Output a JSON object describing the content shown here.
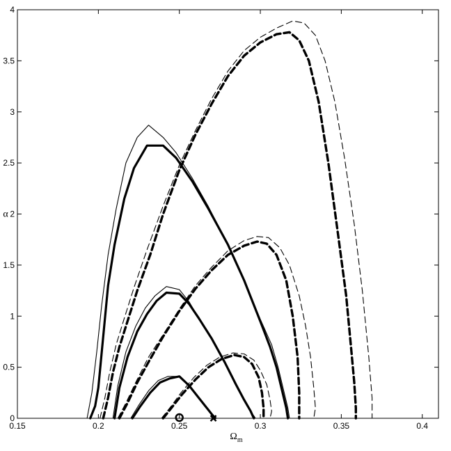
{
  "chart_data": {
    "type": "line",
    "title": "",
    "xlabel": "Ω",
    "xlabel_subscript": "m",
    "ylabel": "α",
    "xlim": [
      0.15,
      0.41
    ],
    "ylim": [
      0,
      4
    ],
    "xticks": [
      0.15,
      0.2,
      0.25,
      0.3,
      0.35,
      0.4
    ],
    "yticks": [
      0,
      0.5,
      1,
      1.5,
      2,
      2.5,
      3,
      3.5,
      4
    ],
    "xtick_labels": [
      "0.15",
      "0.2",
      "0.25",
      "0.3",
      "0.35",
      "0.4"
    ],
    "ytick_labels": [
      "0",
      "0.5",
      "1",
      "1.5",
      "2",
      "2.5",
      "3",
      "3.5",
      "4"
    ],
    "grid": false,
    "series": [
      {
        "style": "solid-thick",
        "x": [
          0.195,
          0.198,
          0.2,
          0.203,
          0.206,
          0.21,
          0.216,
          0.222,
          0.23,
          0.24,
          0.248,
          0.258,
          0.268,
          0.28,
          0.29,
          0.3,
          0.306,
          0.31,
          0.313,
          0.316,
          0.317
        ],
        "y": [
          0,
          0.12,
          0.3,
          0.8,
          1.3,
          1.7,
          2.15,
          2.45,
          2.67,
          2.67,
          2.55,
          2.32,
          2.05,
          1.7,
          1.35,
          0.95,
          0.7,
          0.5,
          0.3,
          0.1,
          0
        ]
      },
      {
        "style": "solid-thin",
        "x": [
          0.193,
          0.196,
          0.199,
          0.202,
          0.206,
          0.211,
          0.217,
          0.224,
          0.231,
          0.24,
          0.248,
          0.258,
          0.268,
          0.28,
          0.29,
          0.3,
          0.307,
          0.311,
          0.314,
          0.317,
          0.318
        ],
        "y": [
          0,
          0.25,
          0.65,
          1.1,
          1.6,
          2.05,
          2.5,
          2.75,
          2.87,
          2.75,
          2.6,
          2.35,
          2.07,
          1.7,
          1.35,
          0.97,
          0.72,
          0.5,
          0.3,
          0.1,
          0
        ]
      },
      {
        "style": "solid-thick",
        "x": [
          0.21,
          0.213,
          0.218,
          0.224,
          0.23,
          0.236,
          0.242,
          0.25,
          0.256,
          0.262,
          0.27,
          0.278,
          0.285,
          0.29,
          0.294,
          0.296
        ],
        "y": [
          0,
          0.3,
          0.6,
          0.85,
          1.02,
          1.15,
          1.23,
          1.22,
          1.12,
          0.98,
          0.78,
          0.55,
          0.33,
          0.18,
          0.07,
          0
        ]
      },
      {
        "style": "solid-thin",
        "x": [
          0.209,
          0.212,
          0.217,
          0.223,
          0.229,
          0.235,
          0.242,
          0.25,
          0.256,
          0.262,
          0.27,
          0.278,
          0.285,
          0.29,
          0.294,
          0.297
        ],
        "y": [
          0,
          0.32,
          0.65,
          0.9,
          1.08,
          1.2,
          1.29,
          1.26,
          1.14,
          0.98,
          0.78,
          0.55,
          0.33,
          0.18,
          0.07,
          0
        ]
      },
      {
        "style": "solid-thick",
        "x": [
          0.221,
          0.226,
          0.232,
          0.238,
          0.244,
          0.25,
          0.256,
          0.262,
          0.268,
          0.272
        ],
        "y": [
          0,
          0.12,
          0.25,
          0.35,
          0.39,
          0.41,
          0.32,
          0.2,
          0.08,
          0
        ]
      },
      {
        "style": "solid-thin",
        "x": [
          0.22,
          0.225,
          0.231,
          0.237,
          0.243,
          0.25,
          0.256,
          0.262,
          0.268,
          0.273
        ],
        "y": [
          0,
          0.13,
          0.27,
          0.37,
          0.41,
          0.41,
          0.33,
          0.2,
          0.08,
          0
        ]
      },
      {
        "style": "dashed-thick",
        "x": [
          0.203,
          0.206,
          0.209,
          0.213,
          0.218,
          0.224,
          0.232,
          0.24,
          0.25,
          0.26,
          0.27,
          0.28,
          0.29,
          0.3,
          0.31,
          0.318,
          0.324,
          0.33,
          0.336,
          0.342,
          0.348,
          0.353,
          0.356,
          0.358,
          0.359,
          0.359
        ],
        "y": [
          0,
          0.2,
          0.45,
          0.7,
          0.95,
          1.25,
          1.6,
          2.0,
          2.43,
          2.78,
          3.08,
          3.35,
          3.55,
          3.68,
          3.76,
          3.78,
          3.7,
          3.5,
          3.1,
          2.5,
          1.8,
          1.2,
          0.7,
          0.35,
          0.1,
          0
        ]
      },
      {
        "style": "dashed-thin",
        "x": [
          0.201,
          0.204,
          0.207,
          0.211,
          0.216,
          0.222,
          0.23,
          0.24,
          0.25,
          0.26,
          0.27,
          0.28,
          0.29,
          0.3,
          0.31,
          0.32,
          0.327,
          0.334,
          0.34,
          0.346,
          0.352,
          0.358,
          0.363,
          0.367,
          0.369,
          0.369
        ],
        "y": [
          0,
          0.2,
          0.45,
          0.72,
          0.98,
          1.28,
          1.65,
          2.08,
          2.48,
          2.82,
          3.13,
          3.4,
          3.6,
          3.73,
          3.82,
          3.89,
          3.87,
          3.75,
          3.5,
          3.1,
          2.55,
          1.9,
          1.25,
          0.6,
          0.2,
          0
        ]
      },
      {
        "style": "dashed-thick",
        "x": [
          0.213,
          0.218,
          0.224,
          0.232,
          0.24,
          0.25,
          0.26,
          0.27,
          0.28,
          0.29,
          0.298,
          0.304,
          0.31,
          0.316,
          0.32,
          0.323,
          0.324,
          0.324
        ],
        "y": [
          0,
          0.15,
          0.35,
          0.58,
          0.8,
          1.05,
          1.27,
          1.45,
          1.6,
          1.69,
          1.73,
          1.71,
          1.6,
          1.35,
          1.0,
          0.6,
          0.25,
          0
        ]
      },
      {
        "style": "dashed-thin",
        "x": [
          0.212,
          0.217,
          0.223,
          0.231,
          0.24,
          0.25,
          0.26,
          0.27,
          0.28,
          0.29,
          0.298,
          0.305,
          0.312,
          0.318,
          0.324,
          0.328,
          0.331,
          0.333,
          0.334,
          0.333
        ],
        "y": [
          0,
          0.15,
          0.35,
          0.6,
          0.82,
          1.07,
          1.3,
          1.48,
          1.64,
          1.74,
          1.78,
          1.77,
          1.67,
          1.5,
          1.2,
          0.9,
          0.6,
          0.3,
          0.1,
          0
        ]
      },
      {
        "style": "dashed-thick",
        "x": [
          0.24,
          0.246,
          0.252,
          0.26,
          0.268,
          0.276,
          0.284,
          0.29,
          0.295,
          0.299,
          0.301,
          0.302,
          0.302
        ],
        "y": [
          0,
          0.12,
          0.24,
          0.38,
          0.5,
          0.58,
          0.62,
          0.6,
          0.53,
          0.4,
          0.25,
          0.1,
          0
        ]
      },
      {
        "style": "dashed-thin",
        "x": [
          0.239,
          0.245,
          0.251,
          0.259,
          0.267,
          0.275,
          0.283,
          0.29,
          0.296,
          0.3,
          0.304,
          0.306,
          0.307,
          0.306
        ],
        "y": [
          0,
          0.12,
          0.25,
          0.4,
          0.52,
          0.6,
          0.64,
          0.63,
          0.57,
          0.47,
          0.33,
          0.18,
          0.07,
          0
        ]
      }
    ],
    "markers": [
      {
        "symbol": "circle",
        "x": 0.25,
        "y": 0
      },
      {
        "symbol": "cross",
        "x": 0.271,
        "y": 0
      }
    ]
  }
}
